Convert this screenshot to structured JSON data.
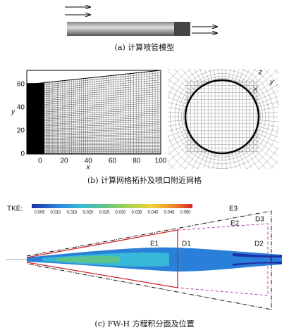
{
  "panel_a": {
    "caption": "(a) 计算喷管模型"
  },
  "panel_b": {
    "caption": "(b) 计算网格拓扑及喷口附近网格",
    "mesh": {
      "xlabel": "x",
      "ylabel": "y",
      "xticks": [
        0,
        20,
        40,
        60,
        80,
        100
      ],
      "yticks": [
        0,
        20,
        40,
        60
      ],
      "xlim": [
        -11,
        100
      ],
      "ylim": [
        0,
        72
      ]
    },
    "axes_triad": {
      "z": "z",
      "y": "y",
      "x": "x"
    }
  },
  "panel_c": {
    "caption": "(c) FW-H 方程积分面及位置",
    "colorbar": {
      "label": "TKE:",
      "ticks": [
        "0.005",
        "0.010",
        "0.015",
        "0.020",
        "0.025",
        "0.030",
        "0.035",
        "0.040",
        "0.045",
        "0.050"
      ]
    },
    "surfaces": {
      "E1": "E1",
      "D1": "D1",
      "E2": "E2",
      "D2": "D2",
      "E3": "E3",
      "D3": "D3"
    }
  }
}
